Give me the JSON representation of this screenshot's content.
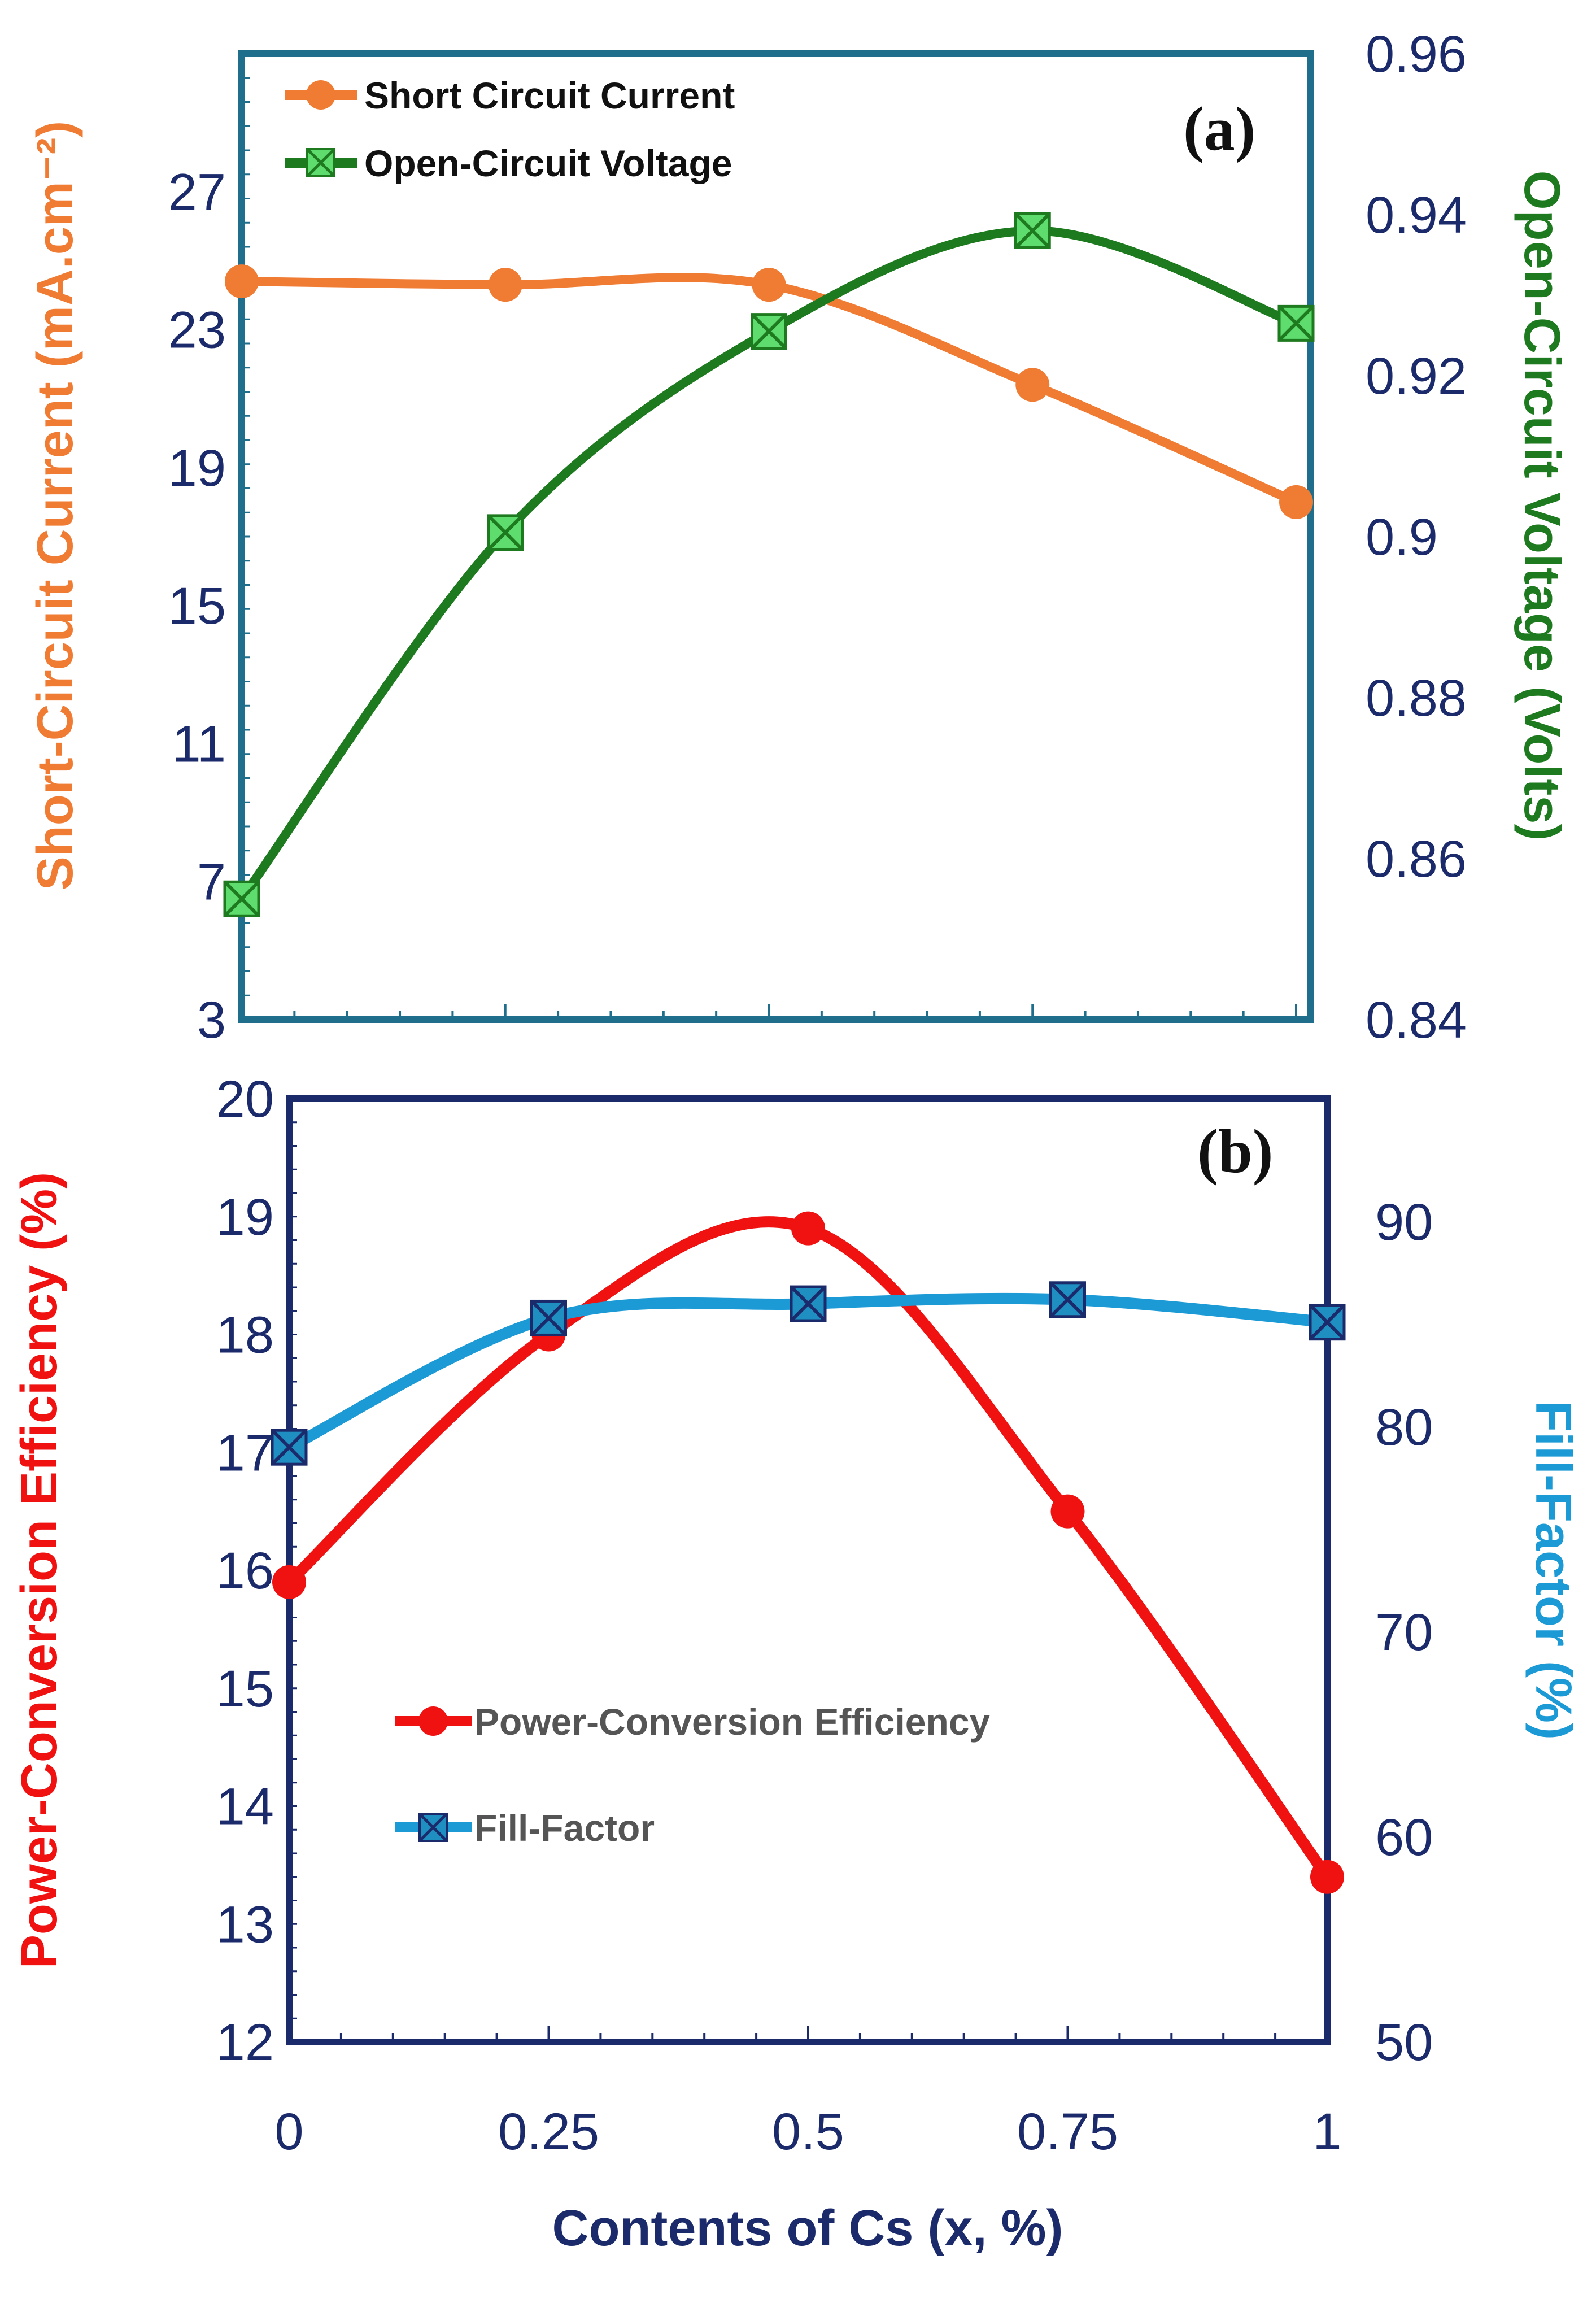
{
  "colors": {
    "isc": "#F07B33",
    "voc_line": "#1E7A1E",
    "voc_marker": "#5EDC6E",
    "pce": "#F01111",
    "ff_line": "#1C9AD6",
    "ff_marker": "#1E8FC0",
    "navy": "#1B2A6B",
    "teal": "#1E6E8C",
    "legend_grey": "#555555"
  },
  "chart_data": [
    {
      "panel": "a",
      "type": "line",
      "panel_label": "(a)",
      "x": [
        0,
        0.25,
        0.5,
        0.75,
        1
      ],
      "y_left": {
        "label": "Short-Circuit Current (mA.cm⁻²)",
        "range": [
          3,
          31
        ],
        "ticks": [
          3,
          7,
          11,
          15,
          19,
          23,
          27
        ],
        "tick_labels": [
          "3",
          "7",
          "11",
          "15",
          "19",
          "23",
          "27"
        ]
      },
      "y_right": {
        "label": "Open-Circuit Voltage (Volts)",
        "range": [
          0.84,
          0.96
        ],
        "ticks": [
          0.84,
          0.86,
          0.88,
          0.9,
          0.92,
          0.94,
          0.96
        ],
        "tick_labels": [
          "0.84",
          "0.86",
          "0.88",
          "0.9",
          "0.92",
          "0.94",
          "0.96"
        ]
      },
      "series": [
        {
          "name": "Short Circuit Current",
          "axis": "left",
          "marker": "circle",
          "values": [
            24.4,
            24.3,
            24.3,
            21.4,
            18.0
          ]
        },
        {
          "name": "Open-Circuit Voltage",
          "axis": "right",
          "marker": "x-square",
          "values": [
            0.855,
            0.9005,
            0.9255,
            0.938,
            0.9265
          ]
        }
      ]
    },
    {
      "panel": "b",
      "type": "line",
      "panel_label": "(b)",
      "x": [
        0,
        0.25,
        0.5,
        0.75,
        1
      ],
      "x_axis": {
        "label": "Contents of Cs (x, %)",
        "ticks": [
          0,
          0.25,
          0.5,
          0.75,
          1
        ],
        "tick_labels": [
          "0",
          "0.25",
          "0.5",
          "0.75",
          "1"
        ]
      },
      "y_left": {
        "label": "Power-Conversion Efficiency (%)",
        "range": [
          12,
          20
        ],
        "ticks": [
          12,
          13,
          14,
          15,
          16,
          17,
          18,
          19,
          20
        ],
        "tick_labels": [
          "12",
          "13",
          "14",
          "15",
          "16",
          "17",
          "18",
          "19",
          "20"
        ]
      },
      "y_right": {
        "label": "Fill-Factor (%)",
        "range": [
          50,
          96
        ],
        "ticks": [
          50,
          60,
          70,
          80,
          90
        ],
        "tick_labels": [
          "50",
          "60",
          "70",
          "80",
          "90"
        ]
      },
      "series": [
        {
          "name": "Power-Conversion Efficiency",
          "axis": "left",
          "marker": "circle",
          "values": [
            15.9,
            18.0,
            18.9,
            16.5,
            13.4
          ]
        },
        {
          "name": "Fill-Factor",
          "axis": "right",
          "marker": "x-square",
          "values": [
            79.0,
            85.3,
            86.0,
            86.2,
            85.1
          ]
        }
      ]
    }
  ]
}
